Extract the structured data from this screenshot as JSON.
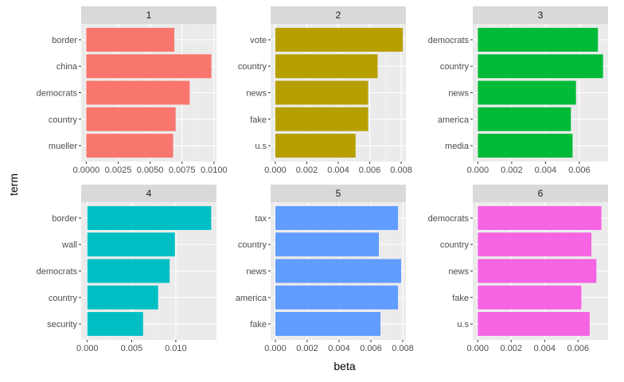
{
  "chart_data": {
    "type": "bar",
    "orientation": "horizontal",
    "facets": "2 rows x 3 columns",
    "xlabel": "beta",
    "ylabel": "term",
    "grid": true,
    "legend": "none",
    "panels": [
      {
        "label": "1",
        "color": "#F8766D",
        "categories": [
          "border",
          "china",
          "democrats",
          "country",
          "mueller"
        ],
        "values": [
          0.0069,
          0.0098,
          0.0081,
          0.007,
          0.0068
        ],
        "xlim": [
          -0.0004,
          0.0102
        ],
        "ticks": [
          0,
          0.0025,
          0.005,
          0.0075,
          0.01
        ],
        "tick_labels": [
          "0.0000",
          "0.0025",
          "0.0050",
          "0.0075",
          "0.0100"
        ]
      },
      {
        "label": "2",
        "color": "#B79F00",
        "categories": [
          "vote",
          "country",
          "news",
          "fake",
          "u.s"
        ],
        "values": [
          0.0081,
          0.0065,
          0.0059,
          0.0059,
          0.0051
        ],
        "xlim": [
          -0.0003,
          0.0083
        ],
        "ticks": [
          0,
          0.002,
          0.004,
          0.006,
          0.008
        ],
        "tick_labels": [
          "0.000",
          "0.002",
          "0.004",
          "0.006",
          "0.008"
        ]
      },
      {
        "label": "3",
        "color": "#00BA38",
        "categories": [
          "democrats",
          "country",
          "news",
          "america",
          "media"
        ],
        "values": [
          0.0071,
          0.0074,
          0.0058,
          0.0055,
          0.0056
        ],
        "xlim": [
          -0.0003,
          0.0077
        ],
        "ticks": [
          0,
          0.002,
          0.004,
          0.006
        ],
        "tick_labels": [
          "0.000",
          "0.002",
          "0.004",
          "0.006"
        ]
      },
      {
        "label": "4",
        "color": "#00BFC4",
        "categories": [
          "border",
          "wall",
          "democrats",
          "country",
          "security"
        ],
        "values": [
          0.014,
          0.0099,
          0.0093,
          0.008,
          0.0063
        ],
        "xlim": [
          -0.0007,
          0.0146
        ],
        "ticks": [
          0,
          0.005,
          0.01
        ],
        "tick_labels": [
          "0.000",
          "0.005",
          "0.010"
        ]
      },
      {
        "label": "5",
        "color": "#619CFF",
        "categories": [
          "tax",
          "country",
          "news",
          "america",
          "fake"
        ],
        "values": [
          0.0077,
          0.0065,
          0.0079,
          0.0077,
          0.0066
        ],
        "xlim": [
          -0.0003,
          0.0082
        ],
        "ticks": [
          0,
          0.002,
          0.004,
          0.006,
          0.008
        ],
        "tick_labels": [
          "0.000",
          "0.002",
          "0.004",
          "0.006",
          "0.008"
        ]
      },
      {
        "label": "6",
        "color": "#F564E3",
        "categories": [
          "democrats",
          "country",
          "news",
          "fake",
          "u.s"
        ],
        "values": [
          0.0074,
          0.0068,
          0.0071,
          0.0062,
          0.0067
        ],
        "xlim": [
          -0.0003,
          0.0078
        ],
        "ticks": [
          0,
          0.002,
          0.004,
          0.006
        ],
        "tick_labels": [
          "0.000",
          "0.002",
          "0.004",
          "0.006"
        ]
      }
    ]
  }
}
